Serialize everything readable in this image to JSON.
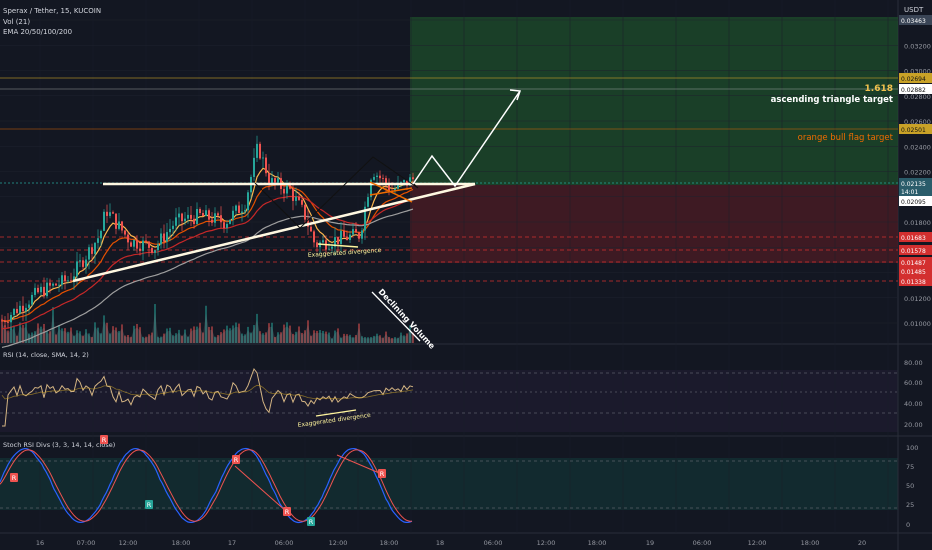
{
  "header": {
    "symbol_line": "Sperax / Tether, 15, KUCOIN",
    "vol_label": "Vol (21)",
    "ema_label": "EMA 20/50/100/200",
    "currency": "USDT"
  },
  "price_axis": {
    "ticks": [
      "0.03400",
      "0.03200",
      "0.03000",
      "0.02800",
      "0.02600",
      "0.02400",
      "0.02200",
      "0.02000",
      "0.01800",
      "0.01600",
      "0.01400",
      "0.01200",
      "0.01000"
    ],
    "tags": [
      {
        "text": "0.03463",
        "color": "#3a4556"
      },
      {
        "text": "0.02882",
        "color": "#ffffff"
      },
      {
        "text": "0.02694",
        "color": "#c9a227"
      },
      {
        "text": "0.02501",
        "color": "#c9a227"
      },
      {
        "text": "0.02135",
        "color": "#2a5c6a"
      },
      {
        "text": "14:01",
        "color": "#2a5c6a"
      },
      {
        "text": "0.02095",
        "color": "#ffffff"
      },
      {
        "text": "0.01683",
        "color": "#d32f2f"
      },
      {
        "text": "0.01578",
        "color": "#d32f2f"
      },
      {
        "text": "0.01487",
        "color": "#d32f2f"
      },
      {
        "text": "0.01485",
        "color": "#d32f2f"
      },
      {
        "text": "0.01338",
        "color": "#d32f2f"
      }
    ]
  },
  "annotations": {
    "fib_label": "1.618",
    "target_label": "ascending triangle target",
    "flag_label": "orange bull flag target",
    "divergence_label": "Exaggerated divergence",
    "volume_label": "Declining Volume",
    "rsi_divergence_label": "Exaggerated divergence"
  },
  "rsi_panel": {
    "title": "RSI (14, close, SMA, 14, 2)",
    "ticks": [
      "80.00",
      "60.00",
      "40.00",
      "20.00"
    ]
  },
  "stoch_panel": {
    "title": "Stoch RSI Divs (3, 3, 14, 14, close)",
    "ticks": [
      "100",
      "75",
      "50",
      "25",
      "0"
    ],
    "markers": [
      "R",
      "R",
      "R",
      "R",
      "R",
      "R",
      "R"
    ]
  },
  "time_axis": [
    "16",
    "07:00",
    "12:00",
    "18:00",
    "17",
    "06:00",
    "12:00",
    "18:00",
    "18",
    "06:00",
    "12:00",
    "18:00",
    "19",
    "06:00",
    "12:00",
    "18:00",
    "20"
  ],
  "colors": {
    "bg": "#131722",
    "up": "#26a69a",
    "down": "#ef5350",
    "target_zone": "#1e4d2b",
    "stop_zone": "#4a1c24",
    "ema20": "#ffb74d",
    "ema50": "#e65100",
    "ema100": "#c62828",
    "ema200": "#9e9e9e",
    "rsi_line": "#d4b483",
    "stoch_k": "#2962ff",
    "stoch_d": "#ef5350"
  },
  "chart_data": [
    {
      "type": "line",
      "title": "Sperax / Tether, 15, KUCOIN",
      "ylim": [
        0.0085,
        0.035
      ],
      "x": [
        "16",
        "07:00",
        "12:00",
        "18:00",
        "17",
        "06:00",
        "12:00",
        "18:00",
        "18"
      ],
      "series": [
        {
          "name": "Close",
          "values": [
            0.0102,
            0.0181,
            0.0165,
            0.017,
            0.0195,
            0.0213,
            0.0168,
            0.0175,
            0.0214
          ]
        }
      ]
    },
    {
      "type": "line",
      "title": "RSI (14, close, SMA, 14, 2)",
      "ylim": [
        10,
        90
      ],
      "series": [
        {
          "name": "RSI",
          "values": [
            60,
            58,
            55,
            50,
            57,
            54,
            42,
            49,
            59
          ]
        }
      ]
    },
    {
      "type": "line",
      "title": "Stoch RSI Divs (3, 3, 14, 14, close)",
      "ylim": [
        0,
        100
      ],
      "series": [
        {
          "name": "K",
          "values": [
            70,
            20,
            85,
            30,
            90,
            10,
            20,
            85,
            60,
            95
          ]
        }
      ]
    }
  ]
}
